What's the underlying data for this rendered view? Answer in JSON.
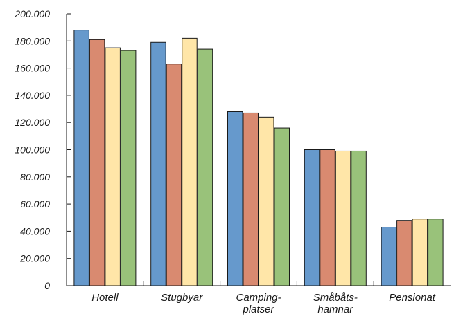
{
  "chart_data": {
    "type": "bar",
    "title": "",
    "xlabel": "",
    "ylabel": "",
    "categories": [
      "Hotell",
      "Stugbyar",
      "Camping-\nplatser",
      "Småbåts-\nhamnar",
      "Pensionat"
    ],
    "ylim": [
      0,
      200000
    ],
    "y_ticks": [
      0,
      20000,
      40000,
      60000,
      80000,
      100000,
      120000,
      140000,
      160000,
      180000,
      200000
    ],
    "y_tick_labels": [
      "0",
      "20.000",
      "40.000",
      "60.000",
      "80.000",
      "100.000",
      "120.000",
      "140.000",
      "160.000",
      "180.000",
      "200.000"
    ],
    "series": [
      {
        "color": "#6699cc",
        "values": [
          188000,
          179000,
          128000,
          100000,
          43000
        ]
      },
      {
        "color": "#d98a70",
        "values": [
          181000,
          163000,
          127000,
          100000,
          48000
        ]
      },
      {
        "color": "#ffe6a8",
        "values": [
          175000,
          182000,
          124000,
          99000,
          49000
        ]
      },
      {
        "color": "#99c27a",
        "values": [
          173000,
          174000,
          116000,
          99000,
          49000
        ]
      }
    ],
    "grid": false,
    "legend": "none"
  }
}
